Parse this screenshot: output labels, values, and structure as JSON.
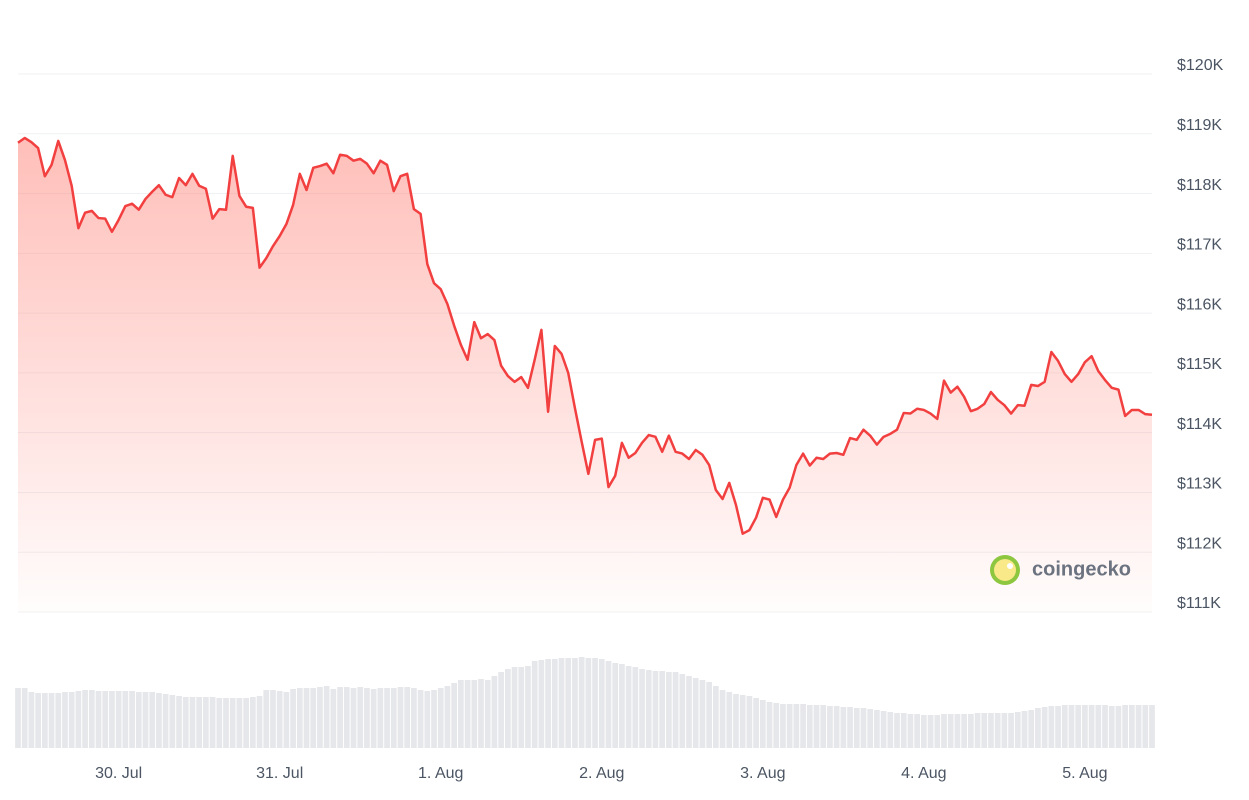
{
  "chart_data": {
    "type": "line",
    "color": "#f23f3f",
    "grid": true,
    "watermark": "coingecko",
    "ylim": [
      111000,
      120000
    ],
    "yticks": [
      {
        "value": 111000,
        "label": "$111K"
      },
      {
        "value": 112000,
        "label": "$112K"
      },
      {
        "value": 113000,
        "label": "$113K"
      },
      {
        "value": 114000,
        "label": "$114K"
      },
      {
        "value": 115000,
        "label": "$115K"
      },
      {
        "value": 116000,
        "label": "$116K"
      },
      {
        "value": 117000,
        "label": "$117K"
      },
      {
        "value": 118000,
        "label": "$118K"
      },
      {
        "value": 119000,
        "label": "$119K"
      },
      {
        "value": 120000,
        "label": "$120K"
      }
    ],
    "categories": [
      null,
      null,
      null,
      null,
      null,
      null,
      null,
      null,
      null,
      null,
      null,
      null,
      null,
      null,
      null,
      "30. Jul",
      null,
      null,
      null,
      null,
      null,
      null,
      null,
      null,
      null,
      null,
      null,
      null,
      null,
      null,
      null,
      null,
      null,
      null,
      null,
      null,
      null,
      null,
      null,
      "31. Jul",
      null,
      null,
      null,
      null,
      null,
      null,
      null,
      null,
      null,
      null,
      null,
      null,
      null,
      null,
      null,
      null,
      null,
      null,
      null,
      null,
      null,
      null,
      null,
      "1. Aug",
      null,
      null,
      null,
      null,
      null,
      null,
      null,
      null,
      null,
      null,
      null,
      null,
      null,
      null,
      null,
      null,
      null,
      null,
      null,
      null,
      null,
      null,
      null,
      "2. Aug",
      null,
      null,
      null,
      null,
      null,
      null,
      null,
      null,
      null,
      null,
      null,
      null,
      null,
      null,
      null,
      null,
      null,
      null,
      null,
      null,
      null,
      null,
      null,
      "3. Aug",
      null,
      null,
      null,
      null,
      null,
      null,
      null,
      null,
      null,
      null,
      null,
      null,
      null,
      null,
      null,
      null,
      null,
      null,
      null,
      null,
      null,
      null,
      null,
      "4. Aug",
      null,
      null,
      null,
      null,
      null,
      null,
      null,
      null,
      null,
      null,
      null,
      null,
      null,
      null,
      null,
      null,
      null,
      null,
      null,
      null,
      null,
      null,
      null,
      "5. Aug",
      null,
      null,
      null,
      null,
      null,
      null,
      null,
      null,
      null,
      null
    ],
    "values": [
      118850,
      118930,
      118860,
      118760,
      118290,
      118480,
      118880,
      118560,
      118130,
      117420,
      117680,
      117710,
      117590,
      117580,
      117360,
      117560,
      117790,
      117830,
      117730,
      117910,
      118030,
      118140,
      117980,
      117940,
      118260,
      118140,
      118330,
      118130,
      118080,
      117580,
      117740,
      117730,
      118630,
      117960,
      117780,
      117760,
      116760,
      116920,
      117120,
      117290,
      117490,
      117810,
      118330,
      118060,
      118430,
      118460,
      118500,
      118340,
      118650,
      118630,
      118550,
      118580,
      118500,
      118340,
      118550,
      118480,
      118040,
      118290,
      118330,
      117740,
      117660,
      116820,
      116500,
      116400,
      116150,
      115790,
      115470,
      115220,
      115850,
      115580,
      115650,
      115550,
      115120,
      114950,
      114850,
      114930,
      114750,
      115220,
      115720,
      114350,
      115450,
      115320,
      115000,
      114410,
      113850,
      113310,
      113880,
      113900,
      113090,
      113280,
      113830,
      113580,
      113660,
      113830,
      113960,
      113930,
      113680,
      113950,
      113680,
      113650,
      113560,
      113710,
      113630,
      113460,
      113040,
      112890,
      113160,
      112790,
      112310,
      112370,
      112580,
      112910,
      112880,
      112590,
      112880,
      113080,
      113460,
      113650,
      113450,
      113580,
      113560,
      113650,
      113660,
      113630,
      113910,
      113880,
      114050,
      113950,
      113800,
      113930,
      113980,
      114050,
      114330,
      114320,
      114400,
      114380,
      114320,
      114230,
      114870,
      114670,
      114770,
      114600,
      114360,
      114400,
      114480,
      114680,
      114550,
      114460,
      114320,
      114460,
      114450,
      114800,
      114780,
      114850,
      115350,
      115200,
      114980,
      114850,
      114980,
      115180,
      115280,
      115030,
      114880,
      114750,
      114720,
      114280,
      114380,
      114380,
      114310,
      114300
    ],
    "volume": {
      "color": "#e6e7ea",
      "ylim": [
        0,
        100
      ],
      "values": [
        60,
        60,
        56,
        55,
        55,
        55,
        55,
        56,
        56,
        57,
        58,
        58,
        57,
        57,
        57,
        57,
        57,
        57,
        56,
        56,
        56,
        55,
        54,
        53,
        52,
        51,
        51,
        51,
        51,
        51,
        50,
        50,
        50,
        50,
        50,
        51,
        52,
        58,
        58,
        57,
        56,
        59,
        60,
        60,
        60,
        61,
        62,
        59,
        61,
        61,
        60,
        61,
        60,
        59,
        60,
        60,
        60,
        61,
        61,
        60,
        58,
        57,
        58,
        60,
        62,
        65,
        68,
        68,
        68,
        69,
        68,
        72,
        76,
        79,
        81,
        81,
        82,
        87,
        88,
        89,
        89,
        90,
        90,
        90,
        91,
        90,
        90,
        89,
        87,
        85,
        84,
        82,
        81,
        79,
        78,
        77,
        77,
        76,
        76,
        74,
        72,
        70,
        68,
        66,
        62,
        58,
        56,
        54,
        53,
        52,
        50,
        48,
        46,
        45,
        44,
        44,
        44,
        44,
        43,
        43,
        43,
        42,
        42,
        41,
        41,
        40,
        40,
        39,
        38,
        37,
        36,
        35,
        35,
        34,
        34,
        33,
        33,
        33,
        34,
        34,
        34,
        34,
        34,
        35,
        35,
        35,
        35,
        35,
        35,
        36,
        37,
        38,
        40,
        41,
        42,
        42,
        43,
        43,
        43,
        43,
        43,
        43,
        43,
        42,
        42,
        43,
        43,
        43,
        43,
        43
      ]
    }
  }
}
